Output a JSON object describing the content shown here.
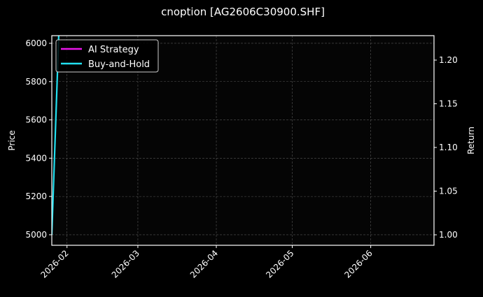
{
  "chart_data": {
    "type": "line",
    "title": "cnoption [AG2606C30900.SHF]",
    "xlabel": "",
    "ylabel_left": "Price",
    "ylabel_right": "Return",
    "xlim": [
      "2026-01-26",
      "2026-06-26"
    ],
    "ylim_left": [
      4945,
      6040
    ],
    "ylim_right": [
      0.988,
      1.228
    ],
    "x_ticks": [
      "2026-02-01",
      "2026-03-01",
      "2026-04-01",
      "2026-05-01",
      "2026-06-01"
    ],
    "x_tick_labels": [
      "2026-02",
      "2026-03",
      "2026-04",
      "2026-05",
      "2026-06"
    ],
    "y_left_ticks": [
      5000,
      5200,
      5400,
      5600,
      5800,
      6000
    ],
    "y_right_ticks": [
      1.0,
      1.05,
      1.1,
      1.15,
      1.2
    ],
    "y_right_tick_labels": [
      "1.00",
      "1.05",
      "1.10",
      "1.15",
      "1.20"
    ],
    "grid": true,
    "legend_placement": "top-left",
    "series": [
      {
        "name": "AI Strategy",
        "color": "#e815e8",
        "axis": "right",
        "x": [],
        "y": []
      },
      {
        "name": "Buy-and-Hold",
        "color": "#22e0f0",
        "axis": "right",
        "x": [
          "2026-01-26",
          "2026-01-29"
        ],
        "y": [
          1.0,
          1.25
        ]
      }
    ]
  }
}
